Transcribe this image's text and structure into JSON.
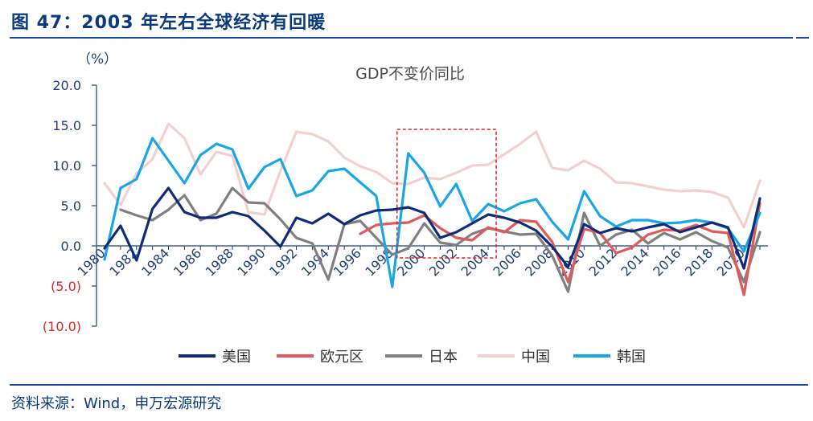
{
  "figure": {
    "title": "图 47：2003 年左右全球经济有回暖",
    "source": "资料来源：Wind，申万宏源研究"
  },
  "colors": {
    "heading": "#0b3a7e",
    "rule": "#1d4fa0",
    "axis": "#1f3f7a",
    "negative_tick": "#d9262b",
    "highlight_box": "#e02020"
  },
  "chart_data": {
    "type": "line",
    "title": "GDP不变价同比",
    "unit_label": "（%）",
    "xlabel": "",
    "ylabel": "",
    "ylim": [
      -10,
      20
    ],
    "yticks": [
      20,
      15,
      10,
      5,
      0,
      -5,
      -10
    ],
    "ytick_labels": [
      "20.0",
      "15.0",
      "10.0",
      "5.0",
      "0.0",
      "(5.0)",
      "(10.0)"
    ],
    "xlim": [
      1980,
      2021
    ],
    "xticks": [
      1980,
      1982,
      1984,
      1986,
      1988,
      1990,
      1992,
      1994,
      1996,
      1998,
      2000,
      2002,
      2004,
      2006,
      2008,
      2010,
      2012,
      2014,
      2016,
      2018,
      2020
    ],
    "grid": false,
    "legend_position": "bottom",
    "highlight": {
      "x_from": 1998.3,
      "x_to": 2004.5,
      "y_from": -1.5,
      "y_to": 14.5
    },
    "series": [
      {
        "name": "美国",
        "color": "#0f2c7a",
        "x": [
          1980,
          1981,
          1982,
          1983,
          1984,
          1985,
          1986,
          1987,
          1988,
          1989,
          1990,
          1991,
          1992,
          1993,
          1994,
          1995,
          1996,
          1997,
          1998,
          1999,
          2000,
          2001,
          2002,
          2003,
          2004,
          2005,
          2006,
          2007,
          2008,
          2009,
          2010,
          2011,
          2012,
          2013,
          2014,
          2015,
          2016,
          2017,
          2018,
          2019,
          2020,
          2021
        ],
        "values": [
          -0.3,
          2.5,
          -1.8,
          4.6,
          7.2,
          4.2,
          3.5,
          3.5,
          4.2,
          3.7,
          1.9,
          -0.1,
          3.5,
          2.8,
          4.0,
          2.7,
          3.8,
          4.4,
          4.5,
          4.8,
          4.1,
          1.0,
          1.7,
          2.8,
          3.9,
          3.5,
          2.9,
          1.9,
          -0.1,
          -2.6,
          2.7,
          1.6,
          2.2,
          1.8,
          2.3,
          2.7,
          1.7,
          2.3,
          2.9,
          2.3,
          -2.8,
          5.9
        ]
      },
      {
        "name": "欧元区",
        "color": "#e05a5a",
        "x": [
          1996,
          1997,
          1998,
          1999,
          2000,
          2001,
          2002,
          2003,
          2004,
          2005,
          2006,
          2007,
          2008,
          2009,
          2010,
          2011,
          2012,
          2013,
          2014,
          2015,
          2016,
          2017,
          2018,
          2019,
          2020,
          2021
        ],
        "values": [
          1.5,
          2.6,
          2.8,
          2.9,
          3.8,
          2.2,
          1.0,
          0.7,
          2.3,
          1.7,
          3.2,
          3.0,
          0.5,
          -4.5,
          2.1,
          1.6,
          -0.9,
          -0.2,
          1.4,
          2.0,
          1.9,
          2.6,
          1.8,
          1.6,
          -6.1,
          5.3
        ]
      },
      {
        "name": "日本",
        "color": "#808080",
        "x": [
          1981,
          1982,
          1983,
          1984,
          1985,
          1986,
          1987,
          1988,
          1989,
          1990,
          1991,
          1992,
          1993,
          1994,
          1995,
          1996,
          1997,
          1998,
          1999,
          2000,
          2001,
          2002,
          2003,
          2004,
          2005,
          2006,
          2007,
          2008,
          2009,
          2010,
          2011,
          2012,
          2013,
          2014,
          2015,
          2016,
          2017,
          2018,
          2019,
          2020,
          2021
        ],
        "values": [
          4.5,
          3.8,
          3.2,
          4.5,
          6.3,
          3.2,
          4.0,
          7.2,
          5.4,
          5.3,
          3.3,
          1.0,
          0.3,
          -4.2,
          2.7,
          3.1,
          1.0,
          -1.1,
          -0.3,
          2.8,
          0.4,
          0.1,
          1.5,
          2.2,
          1.8,
          1.4,
          1.5,
          -1.2,
          -5.7,
          4.1,
          0.0,
          1.4,
          2.0,
          0.3,
          1.6,
          0.8,
          1.7,
          0.6,
          -0.2,
          -4.5,
          1.7
        ]
      },
      {
        "name": "中国",
        "color": "#f4cfd0",
        "x": [
          1980,
          1981,
          1982,
          1983,
          1984,
          1985,
          1986,
          1987,
          1988,
          1989,
          1990,
          1991,
          1992,
          1993,
          1994,
          1995,
          1996,
          1997,
          1998,
          1999,
          2000,
          2001,
          2002,
          2003,
          2004,
          2005,
          2006,
          2007,
          2008,
          2009,
          2010,
          2011,
          2012,
          2013,
          2014,
          2015,
          2016,
          2017,
          2018,
          2019,
          2020,
          2021
        ],
        "values": [
          7.8,
          5.1,
          9.0,
          10.8,
          15.2,
          13.4,
          8.9,
          11.7,
          11.2,
          4.2,
          3.9,
          9.3,
          14.2,
          13.9,
          13.0,
          11.0,
          9.9,
          9.2,
          7.8,
          7.7,
          8.5,
          8.3,
          9.1,
          10.0,
          10.1,
          11.4,
          12.7,
          14.2,
          9.7,
          9.4,
          10.6,
          9.6,
          7.9,
          7.8,
          7.4,
          7.0,
          6.8,
          6.9,
          6.7,
          6.0,
          2.3,
          8.1
        ]
      },
      {
        "name": "韩国",
        "color": "#1aa6e4",
        "x": [
          1980,
          1981,
          1982,
          1983,
          1984,
          1985,
          1986,
          1987,
          1988,
          1989,
          1990,
          1991,
          1992,
          1993,
          1994,
          1995,
          1996,
          1997,
          1998,
          1999,
          2000,
          2001,
          2002,
          2003,
          2004,
          2005,
          2006,
          2007,
          2008,
          2009,
          2010,
          2011,
          2012,
          2013,
          2014,
          2015,
          2016,
          2017,
          2018,
          2019,
          2020,
          2021
        ],
        "values": [
          -1.7,
          7.2,
          8.3,
          13.4,
          10.6,
          7.8,
          11.3,
          12.7,
          12.0,
          7.1,
          9.8,
          10.8,
          6.2,
          6.9,
          9.3,
          9.6,
          7.9,
          6.2,
          -5.1,
          11.5,
          9.1,
          4.9,
          7.7,
          3.1,
          5.2,
          4.3,
          5.3,
          5.8,
          3.0,
          0.8,
          6.8,
          3.7,
          2.4,
          3.2,
          3.2,
          2.8,
          2.9,
          3.2,
          2.9,
          2.2,
          -0.7,
          4.1
        ]
      }
    ]
  }
}
